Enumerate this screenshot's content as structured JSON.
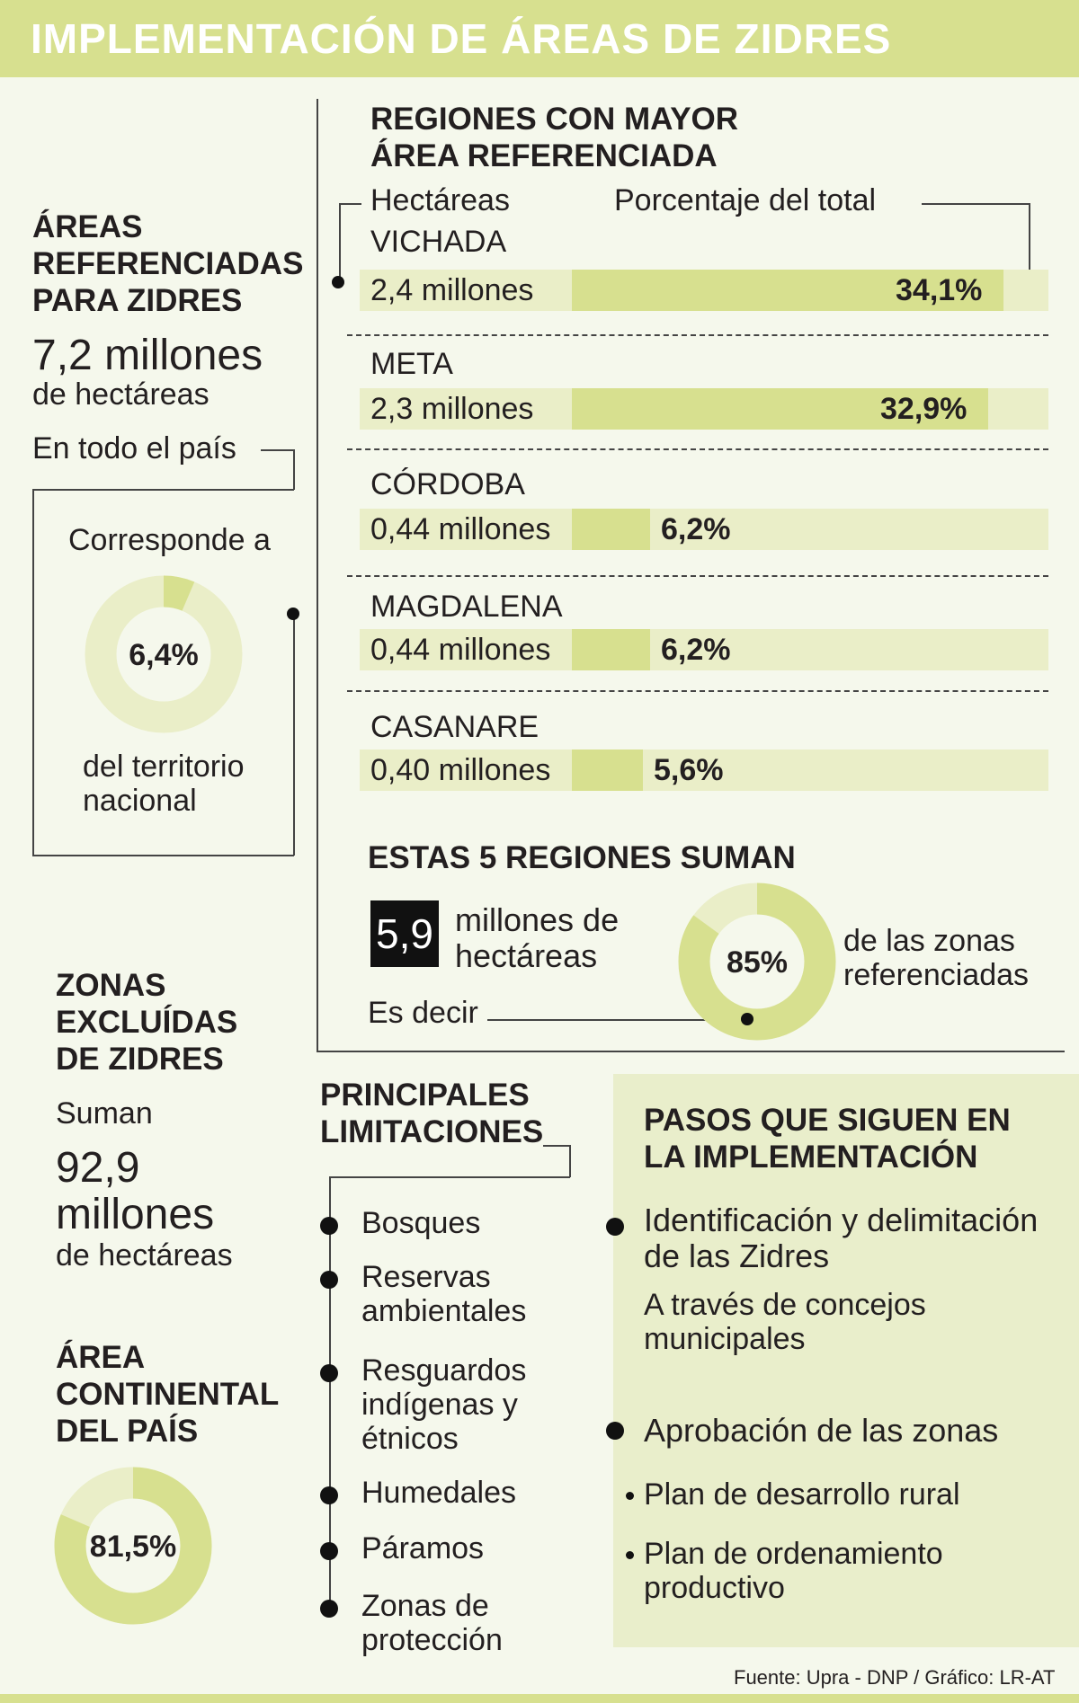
{
  "title": "IMPLEMENTACIÓN DE ÁREAS DE ZIDRES",
  "areas": {
    "heading": "ÁREAS REFERENCIADAS PARA ZIDRES",
    "value": "7,2 millones",
    "unit": "de hectáreas",
    "scope": "En todo el país",
    "corresponde": "Corresponde a",
    "donut_label": "6,4%",
    "donut_percent": 6.4,
    "territorio": "del territorio nacional"
  },
  "regiones": {
    "heading": "REGIONES CON MAYOR ÁREA REFERENCIADA",
    "col_hectareas": "Hectáreas",
    "col_porcentaje": "Porcentaje del total"
  },
  "chart_data": {
    "type": "bar",
    "orientation": "horizontal",
    "categories": [
      "VICHADA",
      "META",
      "CÓRDOBA",
      "MAGDALENA",
      "CASANARE"
    ],
    "hectareas_labels": [
      "2,4 millones",
      "2,3 millones",
      "0,44 millones",
      "0,44 millones",
      "0,40 millones"
    ],
    "hectareas_millones": [
      2.4,
      2.3,
      0.44,
      0.44,
      0.4
    ],
    "value_labels": [
      "34,1%",
      "32,9%",
      "6,2%",
      "6,2%",
      "5,6%"
    ],
    "values": [
      34.1,
      32.9,
      6.2,
      6.2,
      5.6
    ],
    "xlabel": "Porcentaje del total",
    "ylabel": "Hectáreas"
  },
  "suman": {
    "heading": "ESTAS 5 REGIONES SUMAN",
    "value": "5,9",
    "unit": "millones de hectáreas",
    "es_decir": "Es decir",
    "donut_label": "85%",
    "donut_percent": 85,
    "zonas": "de las zonas referenciadas"
  },
  "excluidas": {
    "heading": "ZONAS EXCLUÍDAS DE ZIDRES",
    "suman": "Suman",
    "value": "92,9",
    "value_unit": "millones",
    "unit": "de hectáreas"
  },
  "continental": {
    "heading": "ÁREA CONTINENTAL DEL PAÍS",
    "donut_label": "81,5%",
    "donut_percent": 81.5
  },
  "limitaciones": {
    "heading": "PRINCIPALES LIMITACIONES",
    "items": [
      "Bosques",
      "Reservas ambientales",
      "Resguardos indígenas y étnicos",
      "Humedales",
      "Páramos",
      "Zonas de protección"
    ]
  },
  "pasos": {
    "heading": "PASOS QUE SIGUEN EN LA IMPLEMENTACIÓN",
    "step1": "Identificación y delimitación de las Zidres",
    "step1_note": "A través de concejos municipales",
    "step2": "Aprobación de las zonas",
    "step2_items": [
      "Plan de desarrollo rural",
      "Plan de ordenamiento productivo"
    ]
  },
  "source": "Fuente: Upra - DNP / Gráfico: LR-AT",
  "colors": {
    "accent": "#d7e08f",
    "accent_light": "#eaeec8",
    "background": "#f5f8ec",
    "text": "#231f20"
  }
}
